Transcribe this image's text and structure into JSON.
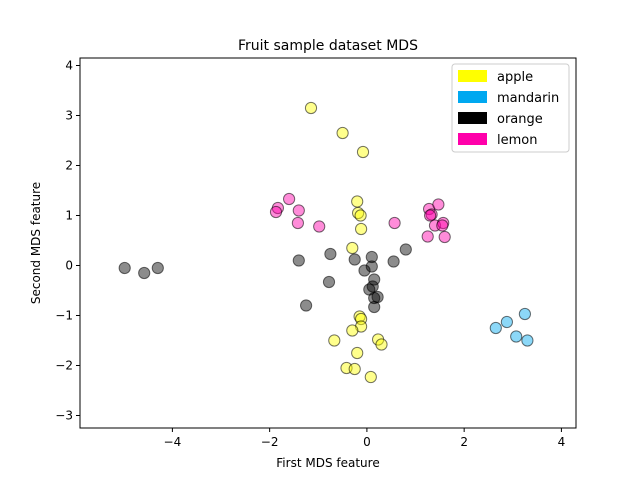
{
  "chart_data": {
    "type": "scatter",
    "title": "Fruit sample dataset MDS",
    "xlabel": "First MDS feature",
    "ylabel": "Second MDS feature",
    "xlim": [
      -5.9,
      4.3
    ],
    "ylim": [
      -3.25,
      4.15
    ],
    "xticks": [
      -4,
      -2,
      0,
      2,
      4
    ],
    "yticks": [
      -3,
      -2,
      -1,
      0,
      1,
      2,
      3,
      4
    ],
    "grid": false,
    "legend_position": "top-right",
    "marker_alpha": 0.45,
    "series": [
      {
        "name": "apple",
        "color": "#ffff00",
        "points": [
          [
            -1.15,
            3.15
          ],
          [
            -0.5,
            2.65
          ],
          [
            -0.08,
            2.27
          ],
          [
            -0.2,
            1.28
          ],
          [
            -0.18,
            1.05
          ],
          [
            -0.13,
            1.0
          ],
          [
            -0.12,
            0.73
          ],
          [
            -0.3,
            0.35
          ],
          [
            -0.15,
            -1.02
          ],
          [
            -0.12,
            -1.07
          ],
          [
            -0.12,
            -1.22
          ],
          [
            -0.3,
            -1.3
          ],
          [
            -0.67,
            -1.5
          ],
          [
            0.23,
            -1.48
          ],
          [
            0.3,
            -1.58
          ],
          [
            -0.2,
            -1.75
          ],
          [
            -0.42,
            -2.05
          ],
          [
            -0.25,
            -2.07
          ],
          [
            0.08,
            -2.23
          ]
        ]
      },
      {
        "name": "mandarin",
        "color": "#00a8f0",
        "points": [
          [
            3.25,
            -0.97
          ],
          [
            2.88,
            -1.13
          ],
          [
            2.65,
            -1.25
          ],
          [
            3.07,
            -1.42
          ],
          [
            3.3,
            -1.5
          ]
        ]
      },
      {
        "name": "orange",
        "color": "#000000",
        "points": [
          [
            -4.98,
            -0.05
          ],
          [
            -4.58,
            -0.15
          ],
          [
            -4.3,
            -0.05
          ],
          [
            -1.4,
            0.1
          ],
          [
            -1.25,
            -0.8
          ],
          [
            -0.75,
            0.23
          ],
          [
            -0.78,
            -0.33
          ],
          [
            -0.25,
            0.12
          ],
          [
            -0.05,
            -0.1
          ],
          [
            0.1,
            0.17
          ],
          [
            0.1,
            -0.02
          ],
          [
            0.15,
            -0.28
          ],
          [
            0.12,
            -0.42
          ],
          [
            0.05,
            -0.48
          ],
          [
            0.15,
            -0.65
          ],
          [
            0.22,
            -0.63
          ],
          [
            0.15,
            -0.83
          ],
          [
            0.55,
            0.08
          ],
          [
            0.8,
            0.32
          ]
        ]
      },
      {
        "name": "lemon",
        "color": "#ff00aa",
        "points": [
          [
            -1.6,
            1.33
          ],
          [
            -1.83,
            1.15
          ],
          [
            -1.87,
            1.07
          ],
          [
            -1.4,
            1.1
          ],
          [
            -1.42,
            0.85
          ],
          [
            -0.98,
            0.78
          ],
          [
            0.57,
            0.85
          ],
          [
            1.28,
            1.13
          ],
          [
            1.33,
            1.02
          ],
          [
            1.3,
            1.0
          ],
          [
            1.47,
            1.22
          ],
          [
            1.4,
            0.8
          ],
          [
            1.57,
            0.85
          ],
          [
            1.55,
            0.8
          ],
          [
            1.25,
            0.58
          ],
          [
            1.6,
            0.57
          ]
        ]
      }
    ]
  }
}
